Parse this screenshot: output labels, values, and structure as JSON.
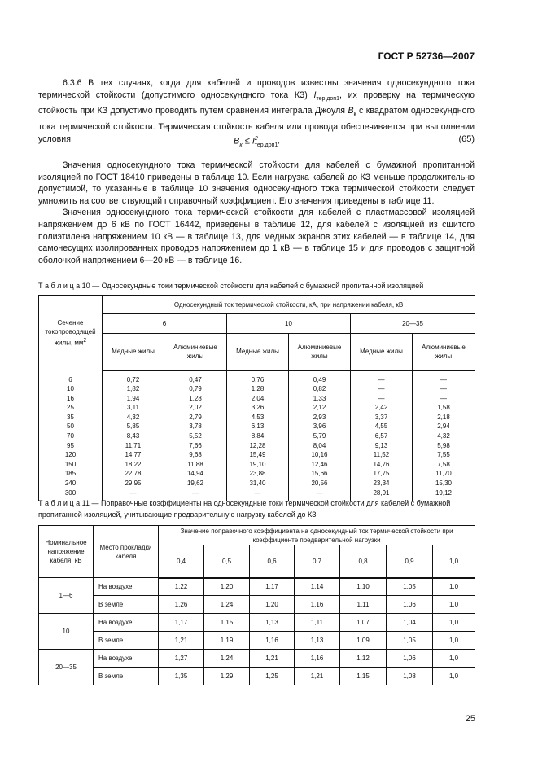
{
  "header": "ГОСТ Р 52736—2007",
  "para1": "6.3.6 В тех случаях, когда для кабелей и проводов известны значения односекундного тока термической стойкости (допустимого односекундного тока КЗ) ",
  "para1_sym": "I",
  "para1_sub": "тер.доп1",
  "para1_b": ", их проверку на термическую стойкость при КЗ допустимо проводить путем сравнения интеграла Джоуля ",
  "para1_bk": "B",
  "para1_bk_sub": "к",
  "para1_c": " с квадратом односекундного тока термической стойкости. Термическая стойкость кабеля или провода обеспечивается при выполнении условия",
  "formula": {
    "lhs": "B",
    "lhs_sub": "к",
    "op": " ≤ ",
    "rhs": "I",
    "rhs_sup": "2",
    "rhs_sub": "тер.доп1",
    "end": ".",
    "number": "(65)"
  },
  "para2": "Значения односекундного тока термической стойкости для кабелей с бумажной пропитанной изоляцией по ГОСТ 18410 приведены в таблице 10. Если нагрузка кабелей до КЗ меньше продолжительно допустимой, то указанные в таблице 10 значения односекундного тока термической стойкости следует умножить на соответствующий поправочный коэффициент. Его значения приведены в таблице 11.",
  "para3": "Значения односекундного тока термической стойкости для кабелей с пластмассовой изоляцией напряжением до 6 кВ по ГОСТ 16442, приведены в таблице 12, для кабелей с изоляцией из сшитого полиэтилена напряжением 10 кВ — в таблице 13, для медных экранов этих кабелей — в таблице 14, для самонесущих изолированных проводов напряжением до 1 кВ — в таблице 15 и для проводов с защитной оболочкой напряжением 6—20 кВ — в таблице 16.",
  "table10": {
    "caption": "Т а б л и ц а  10 — Односекундные токи термической стойкости для кабелей с бумажной пропитанной изоляцией",
    "col0": "Сечение токопроводящей жилы, мм",
    "col0_sup": "2",
    "group": "Односекундный ток термической стойкости, кА, при напряжении кабеля, кВ",
    "voltages": [
      "6",
      "10",
      "20—35"
    ],
    "sub": [
      "Медные жилы",
      "Алюминиевые жилы",
      "Медные жилы",
      "Алюминиевые жилы",
      "Медные жилы",
      "Алюминиевые жилы"
    ],
    "rows": [
      [
        "6",
        "0,72",
        "0,47",
        "0,76",
        "0,49",
        "—",
        "—"
      ],
      [
        "10",
        "1,82",
        "0,79",
        "1,28",
        "0,82",
        "—",
        "—"
      ],
      [
        "16",
        "1,94",
        "1,28",
        "2,04",
        "1,33",
        "—",
        "—"
      ],
      [
        "25",
        "3,11",
        "2,02",
        "3,26",
        "2,12",
        "2,42",
        "1,58"
      ],
      [
        "35",
        "4,32",
        "2,79",
        "4,53",
        "2,93",
        "3,37",
        "2,18"
      ],
      [
        "50",
        "5,85",
        "3,78",
        "6,13",
        "3,96",
        "4,55",
        "2,94"
      ],
      [
        "70",
        "8,43",
        "5,52",
        "8,84",
        "5,79",
        "6,57",
        "4,32"
      ],
      [
        "95",
        "11,71",
        "7,66",
        "12,28",
        "8,04",
        "9,13",
        "5,98"
      ],
      [
        "120",
        "14,77",
        "9,68",
        "15,49",
        "10,16",
        "11,52",
        "7,55"
      ],
      [
        "150",
        "18,22",
        "11,88",
        "19,10",
        "12,46",
        "14,76",
        "7,58"
      ],
      [
        "185",
        "22,78",
        "14,94",
        "23,88",
        "15,66",
        "17,75",
        "11,70"
      ],
      [
        "240",
        "29,95",
        "19,62",
        "31,40",
        "20,56",
        "23,34",
        "15,30"
      ],
      [
        "300",
        "—",
        "—",
        "—",
        "—",
        "28,91",
        "19,12"
      ]
    ]
  },
  "table11": {
    "caption": "Т а б л и ц а  11 — Поправочные коэффициенты на односекундные токи термической стойкости для кабелей с бумажной пропитанной изоляцией, учитывающие предварительную нагрузку кабелей до КЗ",
    "col0": "Номинальное напряжение кабеля, кВ",
    "col1": "Место прокладки кабеля",
    "group": "Значение поправочного коэффициента на односекундный ток термической стойкости при коэффициенте предварительной нагрузки",
    "factors": [
      "0,4",
      "0,5",
      "0,6",
      "0,7",
      "0,8",
      "0,9",
      "1,0"
    ],
    "groups": [
      {
        "voltage": "1—6",
        "rows": [
          {
            "place": "На воздухе",
            "values": [
              "1,22",
              "1,20",
              "1,17",
              "1,14",
              "1,10",
              "1,05",
              "1,0"
            ]
          },
          {
            "place": "В земле",
            "values": [
              "1,26",
              "1,24",
              "1,20",
              "1,16",
              "1,11",
              "1,06",
              "1,0"
            ]
          }
        ]
      },
      {
        "voltage": "10",
        "rows": [
          {
            "place": "На воздухе",
            "values": [
              "1,17",
              "1,15",
              "1,13",
              "1,11",
              "1,07",
              "1,04",
              "1,0"
            ]
          },
          {
            "place": "В земле",
            "values": [
              "1,21",
              "1,19",
              "1,16",
              "1,13",
              "1,09",
              "1,05",
              "1,0"
            ]
          }
        ]
      },
      {
        "voltage": "20—35",
        "rows": [
          {
            "place": "На воздухе",
            "values": [
              "1,27",
              "1,24",
              "1,21",
              "1,16",
              "1,12",
              "1,06",
              "1,0"
            ]
          },
          {
            "place": "В земле",
            "values": [
              "1,35",
              "1,29",
              "1,25",
              "1,21",
              "1,15",
              "1,08",
              "1,0"
            ]
          }
        ]
      }
    ]
  },
  "page_number": "25"
}
